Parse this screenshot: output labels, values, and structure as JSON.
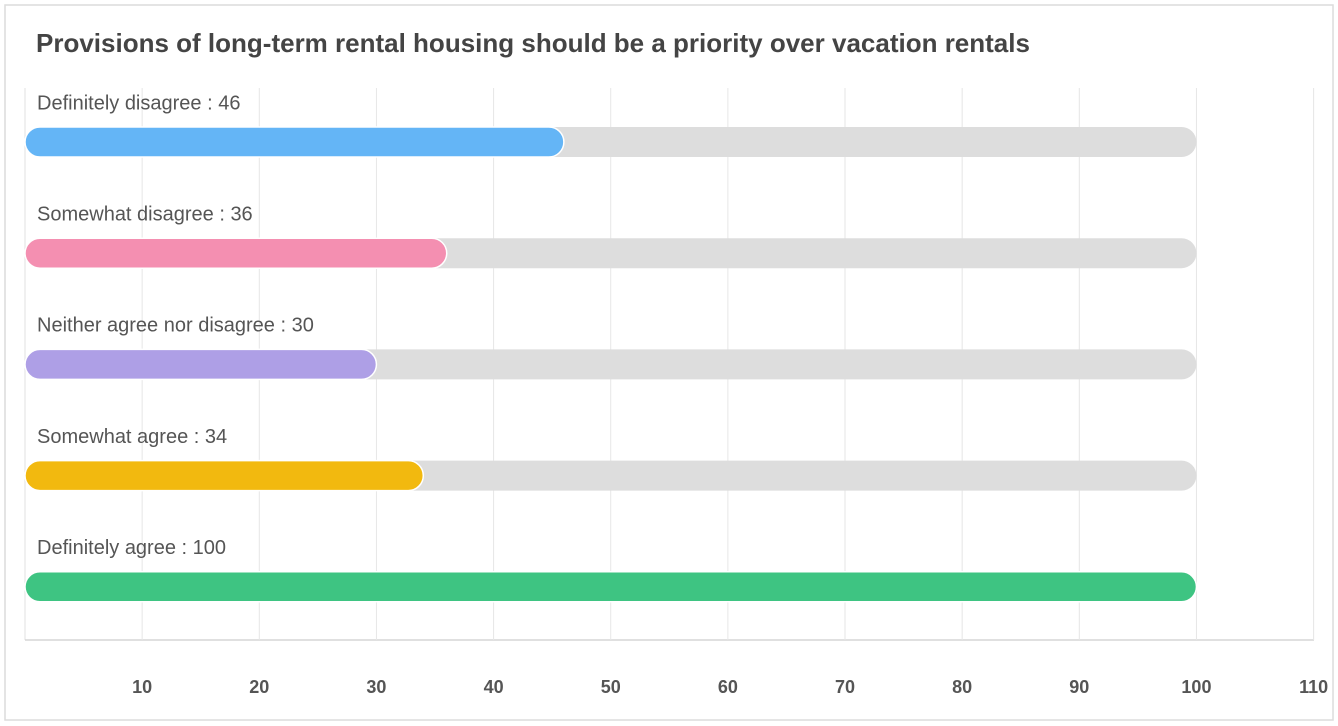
{
  "chart_data": {
    "type": "bar",
    "orientation": "horizontal",
    "title": "Provisions of long-term rental housing should be a priority over vacation rentals",
    "values": [
      46,
      36,
      30,
      34,
      100
    ],
    "value_labels": [
      "Definitely disagree : 46",
      "Somewhat disagree : 36",
      "Neither agree nor disagree : 30",
      "Somewhat agree : 34",
      "Definitely agree : 100"
    ],
    "colors": [
      "#64b5f6",
      "#f48fb1",
      "#ae9fe6",
      "#f2b90f",
      "#3ec482"
    ],
    "track_color": "#dddddd",
    "max": 100,
    "xlim": [
      0,
      110
    ],
    "xticks": [
      10,
      20,
      30,
      40,
      50,
      60,
      70,
      80,
      90,
      100,
      110
    ],
    "grid": true
  }
}
